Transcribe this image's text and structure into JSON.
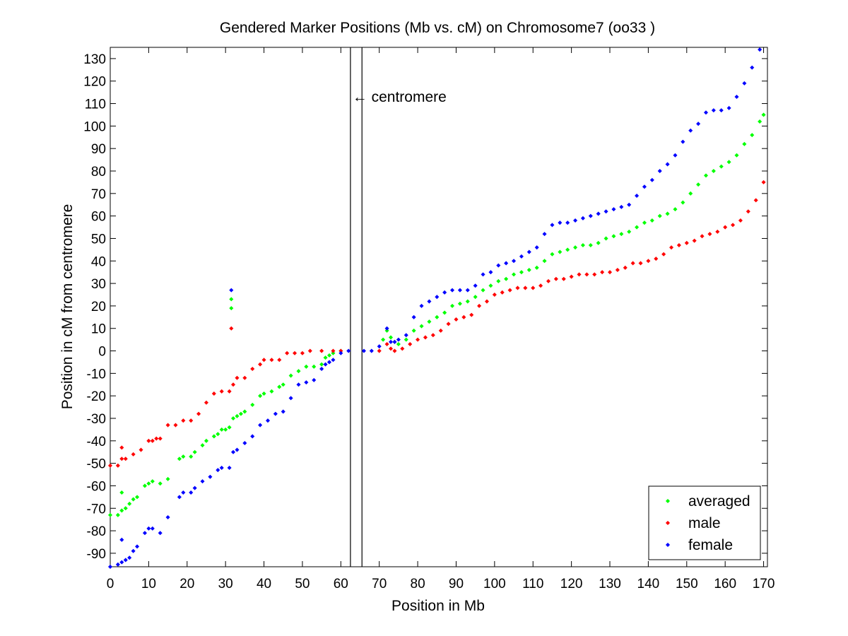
{
  "chart_data": {
    "type": "scatter",
    "title": "Gendered Marker Positions (Mb vs. cM) on Chromosome7 (oo33 )",
    "xlabel": "Position in Mb",
    "ylabel": "Position in cM from centromere",
    "xlim": [
      0,
      171
    ],
    "ylim": [
      -96,
      135
    ],
    "xticks": [
      0,
      10,
      20,
      30,
      40,
      50,
      60,
      70,
      80,
      90,
      100,
      110,
      120,
      130,
      140,
      150,
      160,
      170
    ],
    "yticks": [
      -90,
      -80,
      -70,
      -60,
      -50,
      -40,
      -30,
      -20,
      -10,
      0,
      10,
      20,
      30,
      40,
      50,
      60,
      70,
      80,
      90,
      100,
      110,
      120,
      130
    ],
    "grid": false,
    "legend_position": "bottom-right",
    "centromere_lines_x": [
      62.5,
      65.5
    ],
    "annotation": {
      "text": "← centromere",
      "x": 64.5,
      "y": 113
    },
    "series": [
      {
        "name": "averaged",
        "color": "#00ff00",
        "points": [
          [
            0,
            -73
          ],
          [
            2,
            -73
          ],
          [
            3,
            -63
          ],
          [
            3,
            -71
          ],
          [
            4,
            -70
          ],
          [
            5,
            -68
          ],
          [
            6,
            -66
          ],
          [
            7,
            -65
          ],
          [
            9,
            -60
          ],
          [
            10,
            -59
          ],
          [
            11,
            -58
          ],
          [
            13,
            -59
          ],
          [
            15,
            -57
          ],
          [
            18,
            -48
          ],
          [
            19,
            -47
          ],
          [
            21,
            -47
          ],
          [
            22,
            -45
          ],
          [
            24,
            -42
          ],
          [
            25,
            -40
          ],
          [
            27,
            -38
          ],
          [
            28,
            -37
          ],
          [
            29,
            -35
          ],
          [
            30,
            -35
          ],
          [
            31,
            -34
          ],
          [
            32,
            -30
          ],
          [
            33,
            -29
          ],
          [
            34,
            -28
          ],
          [
            35,
            -27
          ],
          [
            37,
            -24
          ],
          [
            39,
            -20
          ],
          [
            40,
            -19
          ],
          [
            42,
            -18
          ],
          [
            44,
            -16
          ],
          [
            45,
            -15
          ],
          [
            47,
            -11
          ],
          [
            49,
            -9
          ],
          [
            51,
            -7
          ],
          [
            53,
            -7
          ],
          [
            55,
            -6
          ],
          [
            56,
            -3
          ],
          [
            57,
            -2
          ],
          [
            58,
            -1
          ],
          [
            60,
            0
          ],
          [
            31.5,
            19
          ],
          [
            31.5,
            23
          ],
          [
            71,
            5
          ],
          [
            72,
            9
          ],
          [
            73,
            6
          ],
          [
            74,
            4
          ],
          [
            75,
            3
          ],
          [
            77,
            5
          ],
          [
            79,
            9
          ],
          [
            81,
            11
          ],
          [
            83,
            13
          ],
          [
            85,
            15
          ],
          [
            87,
            17
          ],
          [
            89,
            20
          ],
          [
            91,
            21
          ],
          [
            93,
            22
          ],
          [
            95,
            24
          ],
          [
            97,
            27
          ],
          [
            99,
            29
          ],
          [
            101,
            31
          ],
          [
            103,
            32
          ],
          [
            105,
            34
          ],
          [
            107,
            35
          ],
          [
            109,
            36
          ],
          [
            111,
            37
          ],
          [
            113,
            40
          ],
          [
            115,
            43
          ],
          [
            117,
            44
          ],
          [
            119,
            45
          ],
          [
            121,
            46
          ],
          [
            123,
            47
          ],
          [
            125,
            47
          ],
          [
            127,
            48
          ],
          [
            129,
            50
          ],
          [
            131,
            51
          ],
          [
            133,
            52
          ],
          [
            135,
            53
          ],
          [
            137,
            55
          ],
          [
            139,
            57
          ],
          [
            141,
            58
          ],
          [
            143,
            60
          ],
          [
            145,
            61
          ],
          [
            147,
            63
          ],
          [
            149,
            66
          ],
          [
            151,
            70
          ],
          [
            153,
            74
          ],
          [
            155,
            78
          ],
          [
            157,
            80
          ],
          [
            159,
            82
          ],
          [
            161,
            84
          ],
          [
            163,
            87
          ],
          [
            165,
            92
          ],
          [
            167,
            96
          ],
          [
            169,
            102
          ],
          [
            170,
            105
          ]
        ]
      },
      {
        "name": "male",
        "color": "#ff0000",
        "points": [
          [
            0,
            -51
          ],
          [
            2,
            -51
          ],
          [
            3,
            -43
          ],
          [
            3,
            -48
          ],
          [
            4,
            -48
          ],
          [
            6,
            -46
          ],
          [
            8,
            -44
          ],
          [
            10,
            -40
          ],
          [
            11,
            -40
          ],
          [
            12,
            -39
          ],
          [
            13,
            -39
          ],
          [
            15,
            -33
          ],
          [
            17,
            -33
          ],
          [
            19,
            -31
          ],
          [
            21,
            -31
          ],
          [
            23,
            -28
          ],
          [
            25,
            -23
          ],
          [
            27,
            -19
          ],
          [
            29,
            -18
          ],
          [
            31,
            -18
          ],
          [
            32,
            -15
          ],
          [
            33,
            -12
          ],
          [
            35,
            -12
          ],
          [
            37,
            -8
          ],
          [
            39,
            -6
          ],
          [
            40,
            -4
          ],
          [
            42,
            -4
          ],
          [
            44,
            -4
          ],
          [
            46,
            -1
          ],
          [
            48,
            -1
          ],
          [
            50,
            -1
          ],
          [
            52,
            0
          ],
          [
            55,
            0
          ],
          [
            58,
            0
          ],
          [
            60,
            0
          ],
          [
            31.5,
            10
          ],
          [
            70,
            0
          ],
          [
            72,
            3
          ],
          [
            73,
            1
          ],
          [
            74,
            0
          ],
          [
            76,
            1
          ],
          [
            78,
            3
          ],
          [
            80,
            5
          ],
          [
            82,
            6
          ],
          [
            84,
            7
          ],
          [
            86,
            9
          ],
          [
            88,
            12
          ],
          [
            90,
            14
          ],
          [
            92,
            15
          ],
          [
            94,
            16
          ],
          [
            96,
            20
          ],
          [
            98,
            22
          ],
          [
            100,
            25
          ],
          [
            102,
            26
          ],
          [
            104,
            27
          ],
          [
            106,
            28
          ],
          [
            108,
            28
          ],
          [
            110,
            28
          ],
          [
            112,
            29
          ],
          [
            114,
            31
          ],
          [
            116,
            32
          ],
          [
            118,
            32
          ],
          [
            120,
            33
          ],
          [
            122,
            34
          ],
          [
            124,
            34
          ],
          [
            126,
            34
          ],
          [
            128,
            35
          ],
          [
            130,
            35
          ],
          [
            132,
            36
          ],
          [
            134,
            37
          ],
          [
            136,
            39
          ],
          [
            138,
            39
          ],
          [
            140,
            40
          ],
          [
            142,
            41
          ],
          [
            144,
            43
          ],
          [
            146,
            46
          ],
          [
            148,
            47
          ],
          [
            150,
            48
          ],
          [
            152,
            49
          ],
          [
            154,
            51
          ],
          [
            156,
            52
          ],
          [
            158,
            53
          ],
          [
            160,
            55
          ],
          [
            162,
            56
          ],
          [
            164,
            58
          ],
          [
            166,
            62
          ],
          [
            168,
            67
          ],
          [
            170,
            75
          ]
        ]
      },
      {
        "name": "female",
        "color": "#0000ff",
        "points": [
          [
            0,
            -96
          ],
          [
            2,
            -95
          ],
          [
            3,
            -84
          ],
          [
            3,
            -94
          ],
          [
            4,
            -93
          ],
          [
            5,
            -92
          ],
          [
            6,
            -89
          ],
          [
            7,
            -87
          ],
          [
            9,
            -81
          ],
          [
            10,
            -79
          ],
          [
            11,
            -79
          ],
          [
            13,
            -81
          ],
          [
            15,
            -74
          ],
          [
            18,
            -65
          ],
          [
            19,
            -63
          ],
          [
            21,
            -63
          ],
          [
            22,
            -61
          ],
          [
            24,
            -58
          ],
          [
            26,
            -56
          ],
          [
            28,
            -53
          ],
          [
            29,
            -52
          ],
          [
            31,
            -52
          ],
          [
            32,
            -45
          ],
          [
            33,
            -44
          ],
          [
            35,
            -41
          ],
          [
            37,
            -38
          ],
          [
            39,
            -33
          ],
          [
            41,
            -31
          ],
          [
            43,
            -28
          ],
          [
            45,
            -27
          ],
          [
            47,
            -21
          ],
          [
            49,
            -15
          ],
          [
            51,
            -14
          ],
          [
            53,
            -13
          ],
          [
            55,
            -8
          ],
          [
            56,
            -6
          ],
          [
            57,
            -5
          ],
          [
            58,
            -4
          ],
          [
            60,
            -1
          ],
          [
            62,
            0
          ],
          [
            31.5,
            27
          ],
          [
            66,
            0
          ],
          [
            68,
            0
          ],
          [
            70,
            2
          ],
          [
            72,
            10
          ],
          [
            73,
            4
          ],
          [
            74,
            4
          ],
          [
            75,
            5
          ],
          [
            77,
            7
          ],
          [
            79,
            15
          ],
          [
            81,
            20
          ],
          [
            83,
            22
          ],
          [
            85,
            24
          ],
          [
            87,
            26
          ],
          [
            89,
            27
          ],
          [
            91,
            27
          ],
          [
            93,
            27
          ],
          [
            95,
            29
          ],
          [
            97,
            34
          ],
          [
            99,
            35
          ],
          [
            101,
            38
          ],
          [
            103,
            39
          ],
          [
            105,
            40
          ],
          [
            107,
            42
          ],
          [
            109,
            44
          ],
          [
            111,
            46
          ],
          [
            113,
            52
          ],
          [
            115,
            56
          ],
          [
            117,
            57
          ],
          [
            119,
            57
          ],
          [
            121,
            58
          ],
          [
            123,
            59
          ],
          [
            125,
            60
          ],
          [
            127,
            61
          ],
          [
            129,
            62
          ],
          [
            131,
            63
          ],
          [
            133,
            64
          ],
          [
            135,
            65
          ],
          [
            137,
            69
          ],
          [
            139,
            73
          ],
          [
            141,
            76
          ],
          [
            143,
            80
          ],
          [
            145,
            83
          ],
          [
            147,
            87
          ],
          [
            149,
            93
          ],
          [
            151,
            98
          ],
          [
            153,
            101
          ],
          [
            155,
            106
          ],
          [
            157,
            107
          ],
          [
            159,
            107
          ],
          [
            161,
            108
          ],
          [
            163,
            113
          ],
          [
            165,
            119
          ],
          [
            167,
            126
          ],
          [
            169,
            134
          ]
        ]
      }
    ]
  }
}
